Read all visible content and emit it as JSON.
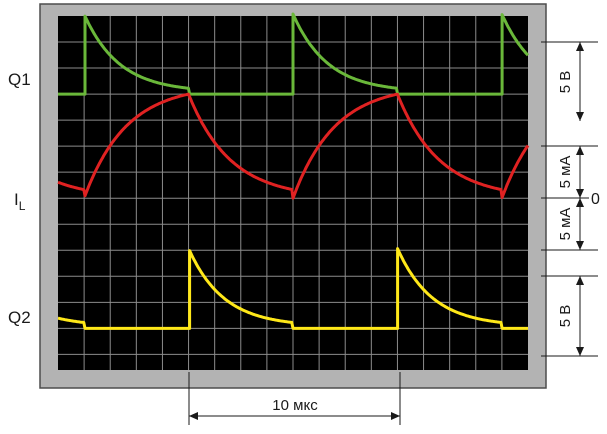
{
  "chart_data": {
    "type": "line",
    "grid": true,
    "time_marker": {
      "label": "10 мкс",
      "from_div": 5.5,
      "to_div": 9.5
    },
    "series": [
      {
        "name": "Q1",
        "color": "#6ab83a",
        "baseline_div": 3.0,
        "amplitude_div": 3.0,
        "period_div": 8.0,
        "rise_at_div": 1.0,
        "on_duration_div": 4.0,
        "decay_to_div": 0.3,
        "scale_label": "5 В",
        "shape": "step-decay"
      },
      {
        "name": "I",
        "subscript": "L",
        "color": "#e02222",
        "baseline_div": 7.0,
        "amplitude_div": 4.0,
        "period_div": 8.0,
        "shape": "rc-charge-discharge",
        "scale_labels": [
          "5 мА",
          "5 мА"
        ],
        "zero_label": "0"
      },
      {
        "name": "Q2",
        "color": "#ffe819",
        "baseline_div": 12.0,
        "amplitude_div": 3.0,
        "period_div": 8.0,
        "rise_at_div": 5.0,
        "on_duration_div": 4.0,
        "decay_to_div": 0.3,
        "scale_label": "5 В",
        "shape": "step-decay"
      }
    ]
  }
}
